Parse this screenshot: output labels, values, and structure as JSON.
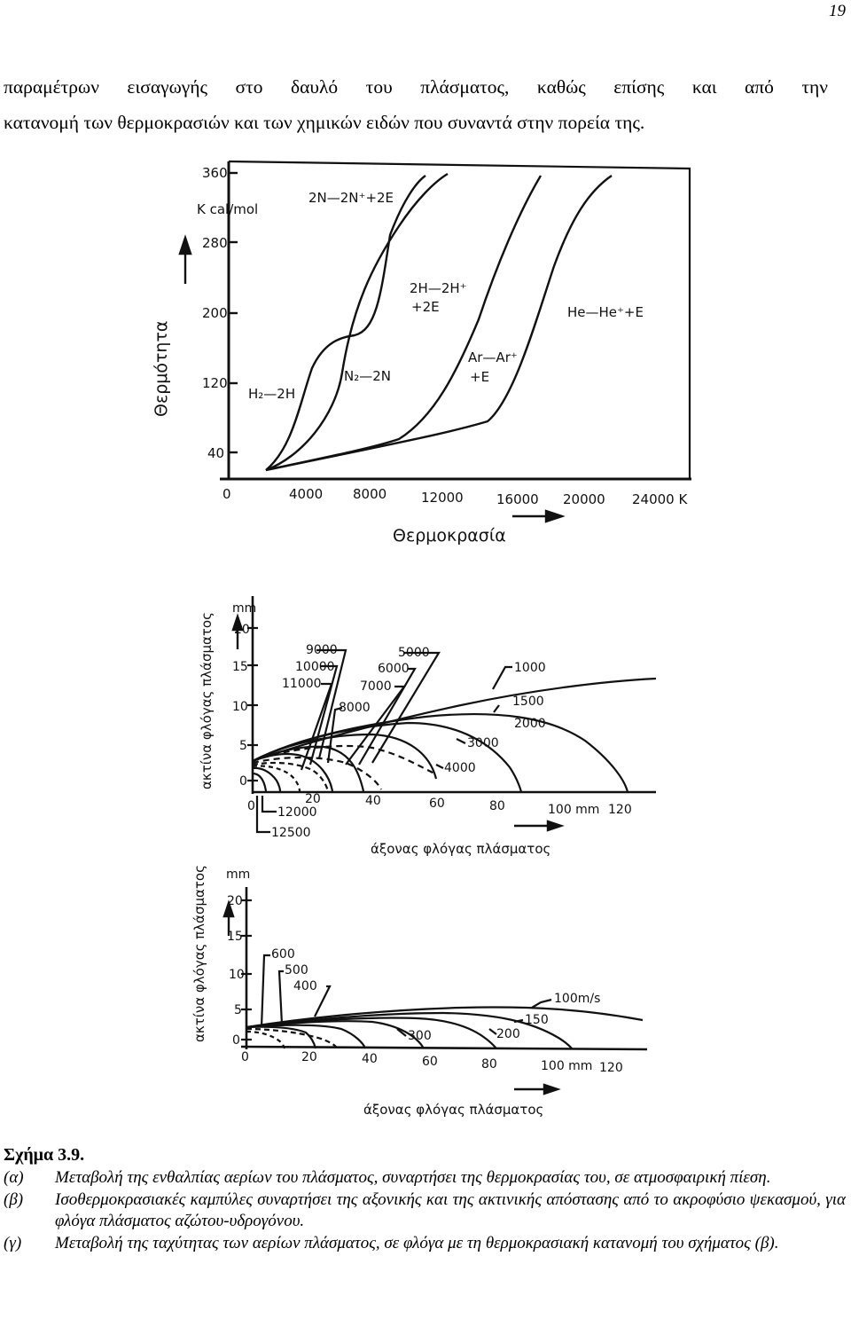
{
  "page_number": "19",
  "intro_lines": [
    "παραμέτρων εισαγωγής στο δαυλό του πλάσματος, καθώς επίσης και από την",
    "κατανομή των θερμοκρασιών και των χημικών ειδών που συναντά στην πορεία της."
  ],
  "figure_a": {
    "y_unit": "K cal/mol",
    "y_label": "Θερμότητα",
    "x_label": "Θερμοκρασία",
    "y_ticks": [
      "360",
      "280",
      "200",
      "120",
      "40"
    ],
    "x_ticks": [
      "0",
      "4000",
      "8000",
      "12000",
      "16000",
      "20000",
      "24000 K"
    ],
    "curve_labels": [
      "2N—2N⁺+2E",
      "2H—2H⁺",
      "+2E",
      "He—He⁺+E",
      "Ar—Ar⁺",
      "+E",
      "H₂—2H",
      "N₂—2N"
    ]
  },
  "figure_b": {
    "y_unit": "mm",
    "y_label": "ακτίνα φλόγας πλάσματος",
    "x_label": "άξονας φλόγας πλάσματος",
    "y_ticks": [
      "20",
      "15",
      "10",
      "5",
      "0"
    ],
    "x_ticks": [
      "0",
      "20",
      "40",
      "60",
      "80",
      "100 mm",
      "120"
    ],
    "isotherm_labels": [
      "9000",
      "10000",
      "11000",
      "8000",
      "5000",
      "6000",
      "7000",
      "1000",
      "1500",
      "2000",
      "3000",
      "4000",
      "12000",
      "12500"
    ]
  },
  "figure_c": {
    "y_unit": "mm",
    "y_label": "ακτίνα φλόγας πλάσματος",
    "x_label": "άξονας φλόγας πλάσματος",
    "y_ticks": [
      "20",
      "15",
      "10",
      "5",
      "0"
    ],
    "x_ticks": [
      "0",
      "20",
      "40",
      "60",
      "80",
      "100 mm",
      "120"
    ],
    "velocity_labels": [
      "600",
      "500",
      "400",
      "100m/s",
      "150",
      "200",
      "300"
    ]
  },
  "caption": {
    "title": "Σχήμα 3.9.",
    "items": [
      {
        "label": "(α)",
        "text": "Μεταβολή της ενθαλπίας αερίων του πλάσματος, συναρτήσει της θερμοκρασίας του, σε ατμοσφαιρική πίεση."
      },
      {
        "label": "(β)",
        "text": "Ισοθερμοκρασιακές καμπύλες συναρτήσει της αξονικής και της ακτινικής απόστασης από το ακροφύσιο ψεκασμού, για φλόγα πλάσματος αζώτου-υδρογόνου."
      },
      {
        "label": "(γ)",
        "text": "Μεταβολή της ταχύτητας των αερίων πλάσματος, σε φλόγα με τη θερμοκρασιακή κατανομή του σχήματος (β)."
      }
    ]
  }
}
